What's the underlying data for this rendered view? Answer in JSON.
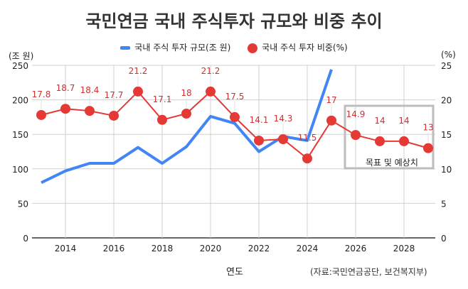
{
  "chart_data": {
    "type": "line",
    "title": "국민연금 국내 주식투자 규모와 비중 추이",
    "xlabel": "연도",
    "source": "(자료:국민연금공단, 보건복지부)",
    "annotation": "목표 및 예상치",
    "x_ticks": [
      "2014",
      "2016",
      "2018",
      "2020",
      "2022",
      "2024",
      "2026",
      "2028"
    ],
    "xlim": [
      2013,
      2029
    ],
    "y_left": {
      "label": "(조 원)",
      "lim": [
        0,
        250
      ],
      "ticks": [
        "0",
        "50",
        "100",
        "150",
        "200",
        "250"
      ]
    },
    "y_right": {
      "label": "(%)",
      "lim": [
        0,
        25
      ],
      "ticks": [
        "0",
        "5",
        "10",
        "15",
        "20",
        "25"
      ]
    },
    "grid": true,
    "legend_position": "top",
    "series": [
      {
        "name": "국내 주식 투자 규모(조 원)",
        "axis": "left",
        "color": "#4285f4",
        "x": [
          2013,
          2014,
          2015,
          2016,
          2017,
          2018,
          2019,
          2020,
          2021,
          2022,
          2023,
          2024,
          2025
        ],
        "values": [
          80,
          97,
          108,
          108,
          131,
          108,
          132,
          176,
          166,
          125,
          147,
          141,
          244
        ]
      },
      {
        "name": "국내 주식 투자 비중(%)",
        "axis": "right",
        "color": "#e53935",
        "x": [
          2013,
          2014,
          2015,
          2016,
          2017,
          2018,
          2019,
          2020,
          2021,
          2022,
          2023,
          2024,
          2025,
          2026,
          2027,
          2028,
          2029
        ],
        "values": [
          17.8,
          18.7,
          18.4,
          17.7,
          21.2,
          17.1,
          18,
          21.2,
          17.5,
          14.1,
          14.3,
          11.5,
          17,
          14.9,
          14,
          14,
          13
        ],
        "labels": [
          "17.8",
          "18.7",
          "18.4",
          "17.7",
          "21.2",
          "17.1",
          "18",
          "21.2",
          "17.5",
          "14.1",
          "14.3",
          "11.5",
          "17",
          "14.9",
          "14",
          "14",
          "13"
        ]
      }
    ]
  }
}
